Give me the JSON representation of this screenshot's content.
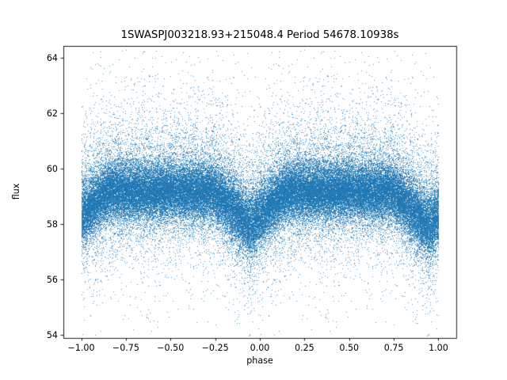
{
  "chart_data": {
    "type": "scatter",
    "title": "1SWASPJ003218.93+215048.4 Period 54678.10938s",
    "xlabel": "phase",
    "ylabel": "flux",
    "xlim": [
      -1.1,
      1.1
    ],
    "ylim": [
      53.886,
      64.429
    ],
    "grid": false,
    "legend": null,
    "xticks": [
      {
        "v": -1.0,
        "label": "−1.00"
      },
      {
        "v": -0.75,
        "label": "−0.75"
      },
      {
        "v": -0.5,
        "label": "−0.50"
      },
      {
        "v": -0.25,
        "label": "−0.25"
      },
      {
        "v": 0.0,
        "label": "0.00"
      },
      {
        "v": 0.25,
        "label": "0.25"
      },
      {
        "v": 0.5,
        "label": "0.50"
      },
      {
        "v": 0.75,
        "label": "0.75"
      },
      {
        "v": 1.0,
        "label": "1.00"
      }
    ],
    "yticks": [
      {
        "v": 54,
        "label": "54"
      },
      {
        "v": 56,
        "label": "56"
      },
      {
        "v": 58,
        "label": "58"
      },
      {
        "v": 60,
        "label": "60"
      },
      {
        "v": 62,
        "label": "62"
      },
      {
        "v": 64,
        "label": "64"
      }
    ],
    "marker_color": "#1f77b4",
    "marker_alpha": 0.78,
    "marker_size_px": 1,
    "axis_color": "#000000",
    "distribution_model": {
      "comment": "Folded eclipsing-binary light curve; each of n_points has phase in [0,1) and is plotted twice, at phase and phase-1, covering x in [-1,1].",
      "seed": 20021,
      "n_points": 42000,
      "duplicated_across_phase": true,
      "flux_mean": 59.18,
      "core_sigma": 0.46,
      "wide_frac": 0.13,
      "wide_sigma": 0.95,
      "upper_tail_frac": 0.08,
      "upper_tail_offset": 0.7,
      "upper_tail_scale": 1.1,
      "lower_tail_frac": 0.045,
      "lower_tail_offset": 0.6,
      "lower_tail_scale": 1.0,
      "flux_min": 53.95,
      "flux_max": 64.3,
      "eclipse": {
        "center_phase": 0.945,
        "half_width": 0.21,
        "depth": 1.85,
        "exponent": 1.15,
        "partial_min": 0.35
      }
    }
  }
}
